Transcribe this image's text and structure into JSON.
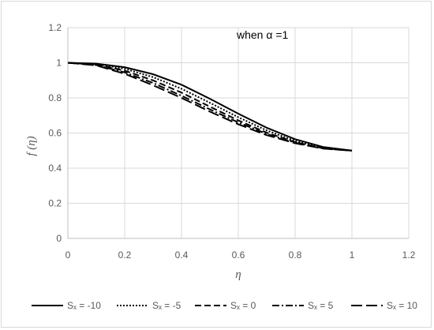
{
  "chart_data": {
    "type": "line",
    "title": "",
    "annotation": "when α =1",
    "xlabel": "η",
    "ylabel": "f (η)",
    "xlim": [
      0,
      1.2
    ],
    "ylim": [
      0,
      1.2
    ],
    "x_ticks": [
      "0",
      "0.2",
      "0.4",
      "0.6",
      "0.8",
      "1",
      "1.2"
    ],
    "y_ticks": [
      "0",
      "0.2",
      "0.4",
      "0.6",
      "0.8",
      "1",
      "1.2"
    ],
    "grid": true,
    "legend_position": "bottom",
    "x": [
      0,
      0.1,
      0.2,
      0.3,
      0.4,
      0.5,
      0.6,
      0.7,
      0.8,
      0.9,
      1.0
    ],
    "series": [
      {
        "name": "Sₓ = -10",
        "dash": "solid",
        "values": [
          1.0,
          0.995,
          0.975,
          0.935,
          0.875,
          0.795,
          0.71,
          0.63,
          0.565,
          0.52,
          0.5
        ]
      },
      {
        "name": "Sₓ = -5",
        "dash": "dotted",
        "values": [
          1.0,
          0.993,
          0.966,
          0.918,
          0.852,
          0.772,
          0.69,
          0.615,
          0.555,
          0.515,
          0.5
        ]
      },
      {
        "name": "Sₓ = 0",
        "dash": "dashed",
        "values": [
          1.0,
          0.99,
          0.955,
          0.9,
          0.83,
          0.75,
          0.672,
          0.602,
          0.548,
          0.513,
          0.5
        ]
      },
      {
        "name": "Sₓ = 5",
        "dash": "dashdot",
        "values": [
          1.0,
          0.987,
          0.945,
          0.885,
          0.812,
          0.735,
          0.66,
          0.595,
          0.545,
          0.512,
          0.5
        ]
      },
      {
        "name": "Sₓ = 10",
        "dash": "longdash",
        "values": [
          1.0,
          0.985,
          0.937,
          0.872,
          0.8,
          0.722,
          0.65,
          0.588,
          0.542,
          0.511,
          0.5
        ]
      }
    ]
  }
}
